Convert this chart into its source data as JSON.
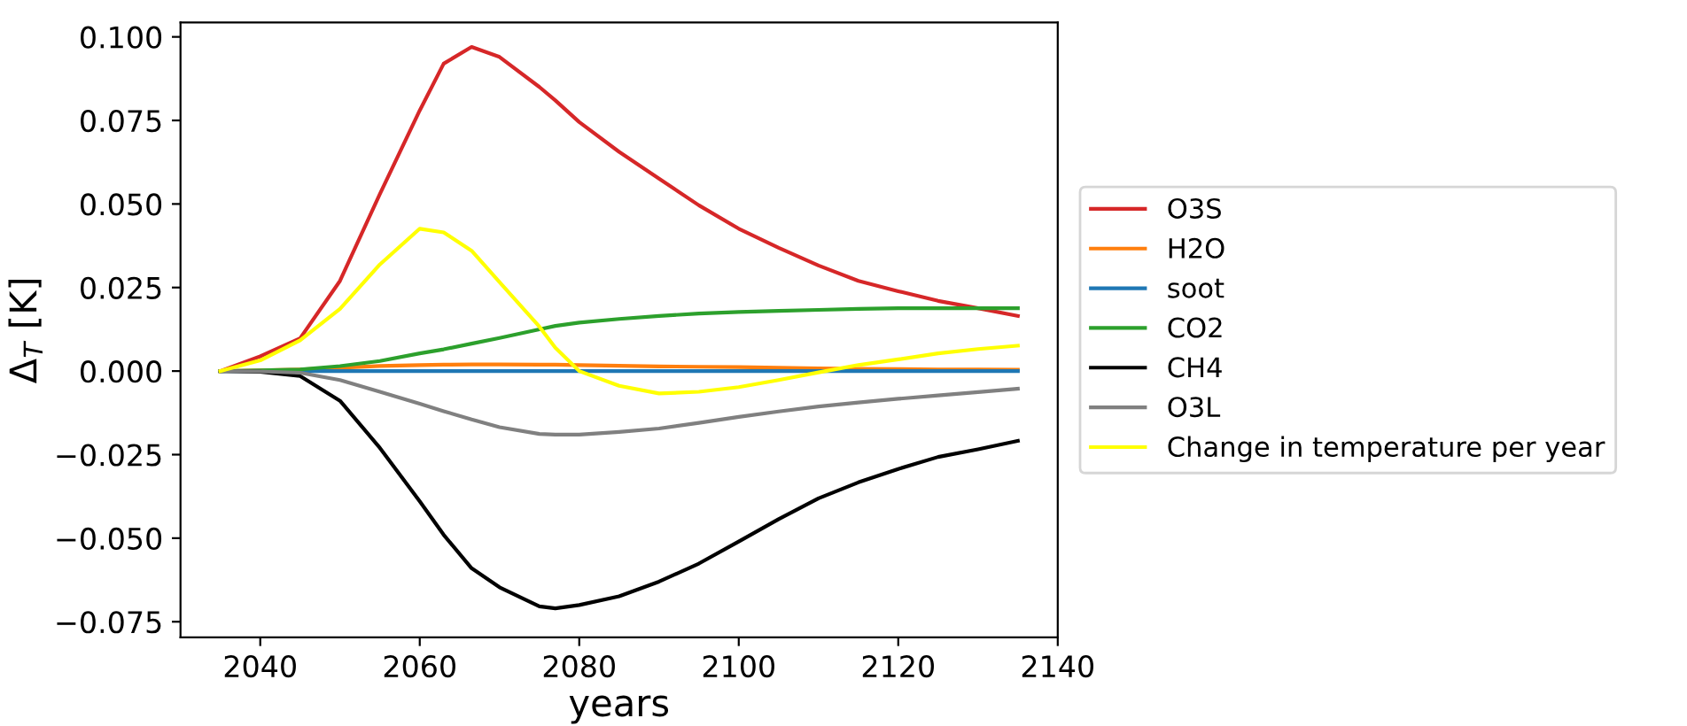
{
  "chart_data": {
    "type": "line",
    "xlabel": "years",
    "ylabel": "Δ$_{T}$ [K]",
    "x": [
      2035,
      2040,
      2045,
      2050,
      2055,
      2060,
      2063,
      2066.5,
      2070,
      2075,
      2077,
      2080,
      2085,
      2090,
      2095,
      2100,
      2105,
      2110,
      2115,
      2120,
      2125,
      2130,
      2135
    ],
    "series": [
      {
        "name": "O3S",
        "color": "#d62728",
        "values": [
          0,
          0.0044,
          0.0098,
          0.027,
          0.053,
          0.078,
          0.092,
          0.097,
          0.094,
          0.085,
          0.081,
          0.0745,
          0.0656,
          0.0576,
          0.0496,
          0.0426,
          0.0369,
          0.0316,
          0.027,
          0.0239,
          0.021,
          0.0188,
          0.0165
        ]
      },
      {
        "name": "H2O",
        "color": "#ff7f0e",
        "values": [
          0,
          0.0002,
          0.0005,
          0.001,
          0.0015,
          0.0018,
          0.0019,
          0.002,
          0.002,
          0.0019,
          0.0019,
          0.0018,
          0.0016,
          0.0014,
          0.0013,
          0.0012,
          0.001,
          0.0008,
          0.0007,
          0.0006,
          0.0005,
          0.0005,
          0.0004
        ]
      },
      {
        "name": "soot",
        "color": "#1f77b4",
        "values": [
          0,
          0,
          0,
          0,
          0,
          0,
          0,
          0,
          0,
          0,
          0,
          0,
          0,
          0,
          0,
          0,
          0,
          0,
          0,
          0,
          0,
          0,
          0
        ]
      },
      {
        "name": "CO2",
        "color": "#2ca02c",
        "values": [
          0,
          0.0002,
          0.0005,
          0.0015,
          0.003,
          0.0053,
          0.0065,
          0.0082,
          0.0099,
          0.0125,
          0.0135,
          0.0145,
          0.0156,
          0.0165,
          0.0172,
          0.0177,
          0.018,
          0.0183,
          0.0186,
          0.0188,
          0.0188,
          0.0188,
          0.0188
        ]
      },
      {
        "name": "CH4",
        "color": "#000000",
        "values": [
          0,
          -0.0002,
          -0.0015,
          -0.0089,
          -0.023,
          -0.039,
          -0.049,
          -0.059,
          -0.0647,
          -0.0704,
          -0.071,
          -0.07,
          -0.0674,
          -0.063,
          -0.0576,
          -0.051,
          -0.0443,
          -0.0381,
          -0.0333,
          -0.0293,
          -0.0257,
          -0.0234,
          -0.0209
        ]
      },
      {
        "name": "O3L",
        "color": "#808080",
        "values": [
          0,
          -0.0001,
          -0.0005,
          -0.0027,
          -0.0062,
          -0.0098,
          -0.012,
          -0.0145,
          -0.0168,
          -0.0188,
          -0.019,
          -0.019,
          -0.0182,
          -0.0172,
          -0.0155,
          -0.0137,
          -0.0121,
          -0.0106,
          -0.0094,
          -0.0083,
          -0.0073,
          -0.0063,
          -0.0053
        ]
      },
      {
        "name": "Change in temperature per year",
        "color": "#ffff00",
        "values": [
          0,
          0.0032,
          0.0092,
          0.0186,
          0.0319,
          0.0426,
          0.0415,
          0.036,
          0.0266,
          0.0133,
          0.007,
          0,
          -0.0044,
          -0.0067,
          -0.0062,
          -0.0048,
          -0.0027,
          -0.0004,
          0.0018,
          0.0035,
          0.0053,
          0.0066,
          0.0076
        ]
      }
    ],
    "xlim": [
      2030,
      2140
    ],
    "xticks": [
      2040,
      2060,
      2080,
      2100,
      2120,
      2140
    ],
    "ylim": [
      -0.0797,
      0.1043
    ],
    "yticks": [
      {
        "value": -0.075,
        "label": "−0.075"
      },
      {
        "value": -0.05,
        "label": "−0.050"
      },
      {
        "value": -0.025,
        "label": "−0.025"
      },
      {
        "value": 0,
        "label": "0.000"
      },
      {
        "value": 0.025,
        "label": "0.025"
      },
      {
        "value": 0.05,
        "label": "0.050"
      },
      {
        "value": 0.075,
        "label": "0.075"
      },
      {
        "value": 0.1,
        "label": "0.100"
      }
    ],
    "grid": false,
    "legend": "right",
    "marker": "none",
    "line_style": "solid"
  }
}
